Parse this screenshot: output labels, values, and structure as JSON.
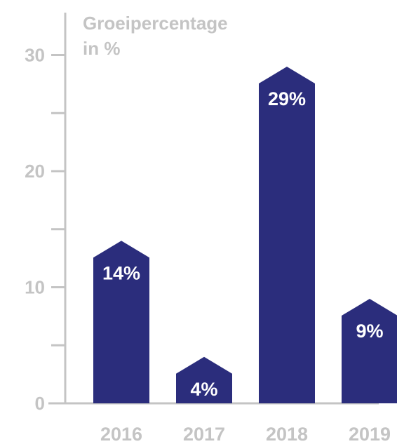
{
  "chart_data": {
    "type": "bar",
    "title": "",
    "ylabel_lines": [
      "Groeipercentage",
      "in %"
    ],
    "xlabel": "",
    "categories": [
      "2016",
      "2017",
      "2018",
      "2019"
    ],
    "values": [
      14,
      4,
      29,
      9
    ],
    "data_labels": [
      "14%",
      "4%",
      "29%",
      "9%"
    ],
    "ylim": [
      0,
      33
    ],
    "major_ticks": [
      0,
      10,
      20,
      30
    ],
    "minor_ticks": [
      5,
      15,
      25
    ],
    "grid": false,
    "legend": "none",
    "bar_color": "#2b2d7c",
    "axis_color": "#c4c4c4",
    "label_color": "#ffffff"
  }
}
